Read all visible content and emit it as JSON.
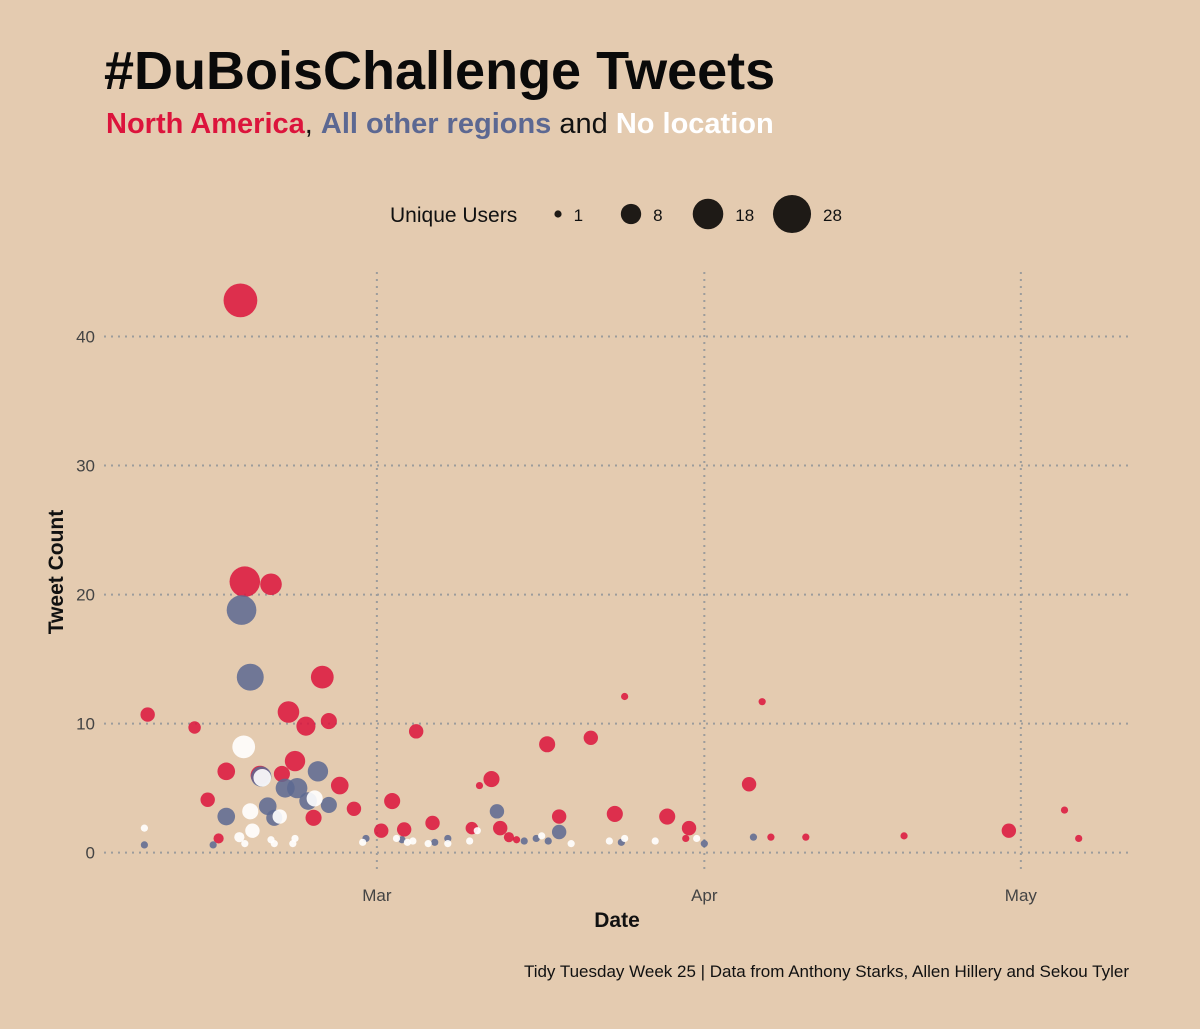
{
  "title": "#DuBoisChallenge Tweets",
  "subtitle": {
    "part1": "North America",
    "sep1": ", ",
    "part2": "All other regions",
    "sep2": " and ",
    "part3": "No location"
  },
  "caption": "Tidy Tuesday Week 25 | Data from Anthony Starks, Allen Hillery and Sekou Tyler",
  "colors": {
    "background": "#e4cbb0",
    "north_america": "#dc143c",
    "other_regions": "#5c6892",
    "no_location": "#ffffff",
    "legend_dot": "#1e1a16",
    "grid": "#9c9c9c"
  },
  "chart_data": {
    "type": "scatter",
    "xlabel": "Date",
    "ylabel": "Tweet Count",
    "x_ticks": [
      {
        "label": "Mar",
        "day": 28
      },
      {
        "label": "Apr",
        "day": 58
      },
      {
        "label": "May",
        "day": 87
      }
    ],
    "xlim": [
      3,
      97
    ],
    "y_ticks": [
      0,
      10,
      20,
      30,
      40
    ],
    "ylim": [
      -1.5,
      45
    ],
    "grid": true,
    "size_legend": {
      "title": "Unique Users",
      "position": "top",
      "values": [
        1,
        8,
        18,
        28
      ]
    },
    "series": [
      {
        "name": "North America",
        "color": "#dc143c",
        "points": [
          {
            "day": 7,
            "y": 10.7,
            "u": 4
          },
          {
            "day": 11.3,
            "y": 9.7,
            "u": 3
          },
          {
            "day": 12.5,
            "y": 4.1,
            "u": 4
          },
          {
            "day": 13.5,
            "y": 1.1,
            "u": 2
          },
          {
            "day": 14.2,
            "y": 6.3,
            "u": 6
          },
          {
            "day": 15.5,
            "y": 42.8,
            "u": 22
          },
          {
            "day": 15.9,
            "y": 21.0,
            "u": 18
          },
          {
            "day": 17.3,
            "y": 6.0,
            "u": 7
          },
          {
            "day": 18.3,
            "y": 20.8,
            "u": 9
          },
          {
            "day": 19.3,
            "y": 6.1,
            "u": 5
          },
          {
            "day": 19.9,
            "y": 10.9,
            "u": 9
          },
          {
            "day": 20.5,
            "y": 7.1,
            "u": 8
          },
          {
            "day": 21.5,
            "y": 9.8,
            "u": 7
          },
          {
            "day": 22.2,
            "y": 2.7,
            "u": 5
          },
          {
            "day": 23.0,
            "y": 13.6,
            "u": 10
          },
          {
            "day": 23.6,
            "y": 10.2,
            "u": 5
          },
          {
            "day": 24.6,
            "y": 5.2,
            "u": 6
          },
          {
            "day": 25.9,
            "y": 3.4,
            "u": 4
          },
          {
            "day": 28.4,
            "y": 1.7,
            "u": 4
          },
          {
            "day": 29.4,
            "y": 4.0,
            "u": 5
          },
          {
            "day": 30.5,
            "y": 1.8,
            "u": 4
          },
          {
            "day": 31.6,
            "y": 9.4,
            "u": 4
          },
          {
            "day": 33.1,
            "y": 2.3,
            "u": 4
          },
          {
            "day": 36.7,
            "y": 1.9,
            "u": 3
          },
          {
            "day": 37.4,
            "y": 5.2,
            "u": 1
          },
          {
            "day": 38.5,
            "y": 5.7,
            "u": 5
          },
          {
            "day": 39.3,
            "y": 1.9,
            "u": 4
          },
          {
            "day": 40.1,
            "y": 1.2,
            "u": 2
          },
          {
            "day": 40.8,
            "y": 1.0,
            "u": 1
          },
          {
            "day": 43.6,
            "y": 8.4,
            "u": 5
          },
          {
            "day": 44.7,
            "y": 2.8,
            "u": 4
          },
          {
            "day": 47.6,
            "y": 8.9,
            "u": 4
          },
          {
            "day": 49.8,
            "y": 3.0,
            "u": 5
          },
          {
            "day": 50.7,
            "y": 12.1,
            "u": 1
          },
          {
            "day": 54.6,
            "y": 2.8,
            "u": 5
          },
          {
            "day": 56.3,
            "y": 1.1,
            "u": 1
          },
          {
            "day": 56.6,
            "y": 1.9,
            "u": 4
          },
          {
            "day": 62.1,
            "y": 5.3,
            "u": 4
          },
          {
            "day": 63.3,
            "y": 11.7,
            "u": 1
          },
          {
            "day": 64.1,
            "y": 1.2,
            "u": 1
          },
          {
            "day": 67.3,
            "y": 1.2,
            "u": 1
          },
          {
            "day": 76.3,
            "y": 1.3,
            "u": 1
          },
          {
            "day": 85.9,
            "y": 1.7,
            "u": 4
          },
          {
            "day": 91.0,
            "y": 3.3,
            "u": 1
          },
          {
            "day": 92.3,
            "y": 1.1,
            "u": 1
          }
        ]
      },
      {
        "name": "All other regions",
        "color": "#5c6892",
        "points": [
          {
            "day": 6.7,
            "y": 0.6,
            "u": 1
          },
          {
            "day": 13.0,
            "y": 0.6,
            "u": 1
          },
          {
            "day": 14.2,
            "y": 2.8,
            "u": 6
          },
          {
            "day": 15.6,
            "y": 18.8,
            "u": 17
          },
          {
            "day": 16.4,
            "y": 13.6,
            "u": 14
          },
          {
            "day": 17.4,
            "y": 5.9,
            "u": 8
          },
          {
            "day": 18.0,
            "y": 3.6,
            "u": 6
          },
          {
            "day": 18.6,
            "y": 2.7,
            "u": 5
          },
          {
            "day": 19.6,
            "y": 5.0,
            "u": 7
          },
          {
            "day": 20.7,
            "y": 5.0,
            "u": 8
          },
          {
            "day": 21.7,
            "y": 4.0,
            "u": 6
          },
          {
            "day": 22.6,
            "y": 6.3,
            "u": 8
          },
          {
            "day": 23.6,
            "y": 3.7,
            "u": 5
          },
          {
            "day": 27.0,
            "y": 1.1,
            "u": 1
          },
          {
            "day": 30.3,
            "y": 1.0,
            "u": 1
          },
          {
            "day": 33.3,
            "y": 0.8,
            "u": 1
          },
          {
            "day": 34.5,
            "y": 1.1,
            "u": 1
          },
          {
            "day": 39.0,
            "y": 3.2,
            "u": 4
          },
          {
            "day": 41.5,
            "y": 0.9,
            "u": 1
          },
          {
            "day": 42.6,
            "y": 1.1,
            "u": 1
          },
          {
            "day": 43.7,
            "y": 0.9,
            "u": 1
          },
          {
            "day": 44.7,
            "y": 1.6,
            "u": 4
          },
          {
            "day": 50.4,
            "y": 0.8,
            "u": 1
          },
          {
            "day": 58.0,
            "y": 0.7,
            "u": 1
          },
          {
            "day": 62.5,
            "y": 1.2,
            "u": 1
          }
        ]
      },
      {
        "name": "No location",
        "color": "#ffffff",
        "points": [
          {
            "day": 6.7,
            "y": 1.9,
            "u": 1
          },
          {
            "day": 15.4,
            "y": 1.2,
            "u": 2
          },
          {
            "day": 15.9,
            "y": 0.7,
            "u": 1
          },
          {
            "day": 15.8,
            "y": 8.2,
            "u": 10
          },
          {
            "day": 16.4,
            "y": 3.2,
            "u": 5
          },
          {
            "day": 16.6,
            "y": 1.7,
            "u": 4
          },
          {
            "day": 17.5,
            "y": 5.8,
            "u": 6
          },
          {
            "day": 18.3,
            "y": 1.0,
            "u": 1
          },
          {
            "day": 18.6,
            "y": 0.7,
            "u": 1
          },
          {
            "day": 19.1,
            "y": 2.8,
            "u": 4
          },
          {
            "day": 20.5,
            "y": 1.1,
            "u": 1
          },
          {
            "day": 20.3,
            "y": 0.7,
            "u": 1
          },
          {
            "day": 22.3,
            "y": 4.2,
            "u": 5
          },
          {
            "day": 26.7,
            "y": 0.8,
            "u": 1
          },
          {
            "day": 29.8,
            "y": 1.1,
            "u": 1
          },
          {
            "day": 30.8,
            "y": 0.8,
            "u": 1
          },
          {
            "day": 31.3,
            "y": 0.9,
            "u": 1
          },
          {
            "day": 32.7,
            "y": 0.7,
            "u": 1
          },
          {
            "day": 34.5,
            "y": 0.7,
            "u": 1
          },
          {
            "day": 36.5,
            "y": 0.9,
            "u": 1
          },
          {
            "day": 37.2,
            "y": 1.7,
            "u": 1
          },
          {
            "day": 43.1,
            "y": 1.3,
            "u": 1
          },
          {
            "day": 45.8,
            "y": 0.7,
            "u": 1
          },
          {
            "day": 49.3,
            "y": 0.9,
            "u": 1
          },
          {
            "day": 50.7,
            "y": 1.1,
            "u": 1
          },
          {
            "day": 53.5,
            "y": 0.9,
            "u": 1
          },
          {
            "day": 57.3,
            "y": 1.1,
            "u": 1
          }
        ]
      }
    ]
  }
}
